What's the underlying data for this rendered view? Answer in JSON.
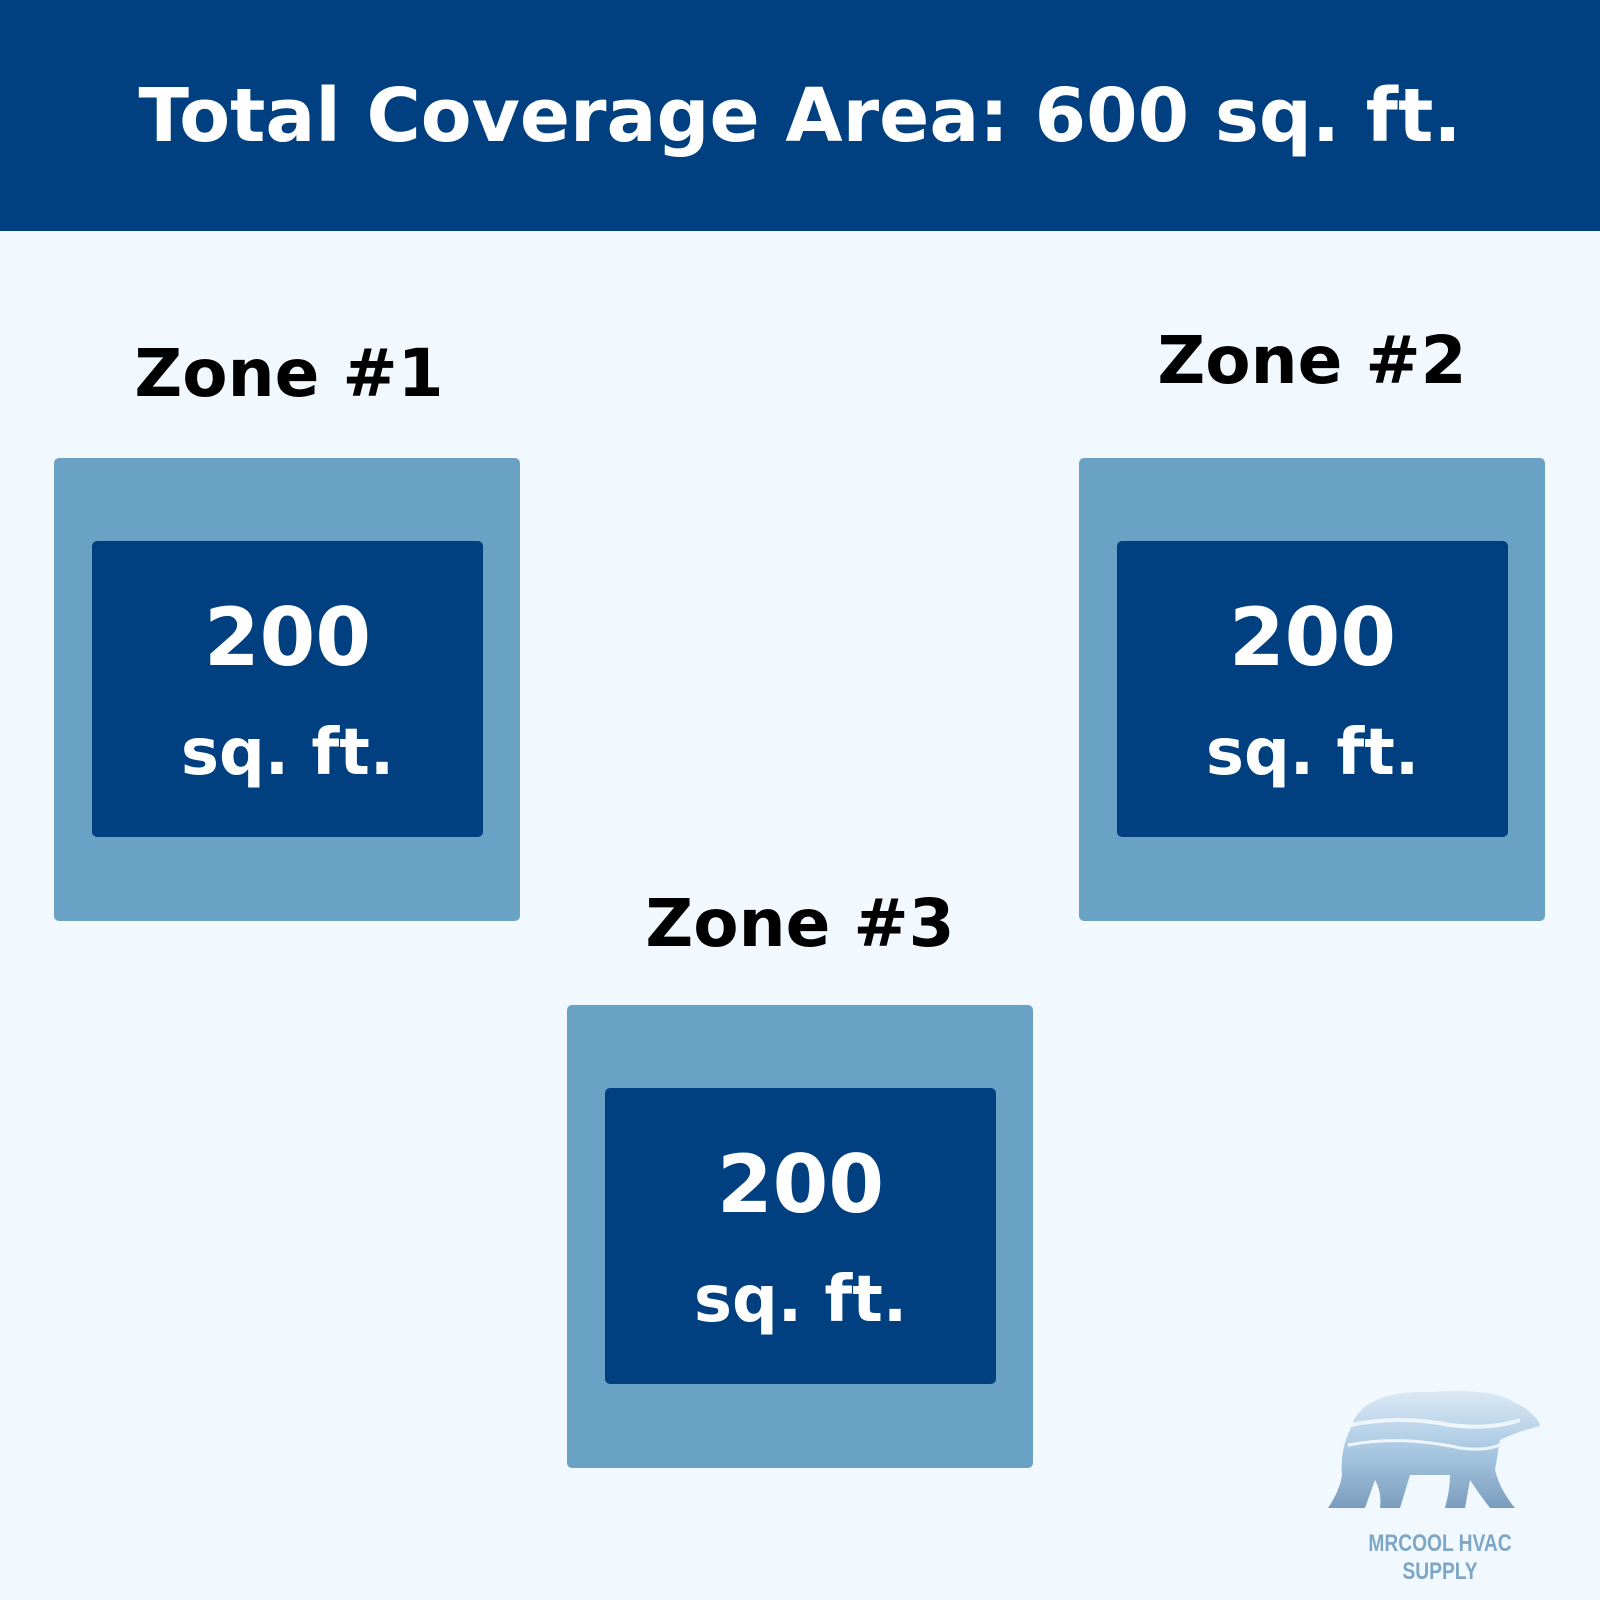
{
  "header": {
    "title": "Total Coverage Area: 600 sq. ft."
  },
  "zones": [
    {
      "title": "Zone #1",
      "area": "200",
      "unit": "sq. ft."
    },
    {
      "title": "Zone #2",
      "area": "200",
      "unit": "sq. ft."
    },
    {
      "title": "Zone #3",
      "area": "200",
      "unit": "sq. ft."
    }
  ],
  "logo": {
    "text": "MRCOOL HVAC SUPPLY",
    "icon": "polar-bear-icon"
  },
  "colors": {
    "navy": "#004080",
    "zone_outer": "#6aa2c6",
    "background": "#f1f8fe"
  }
}
